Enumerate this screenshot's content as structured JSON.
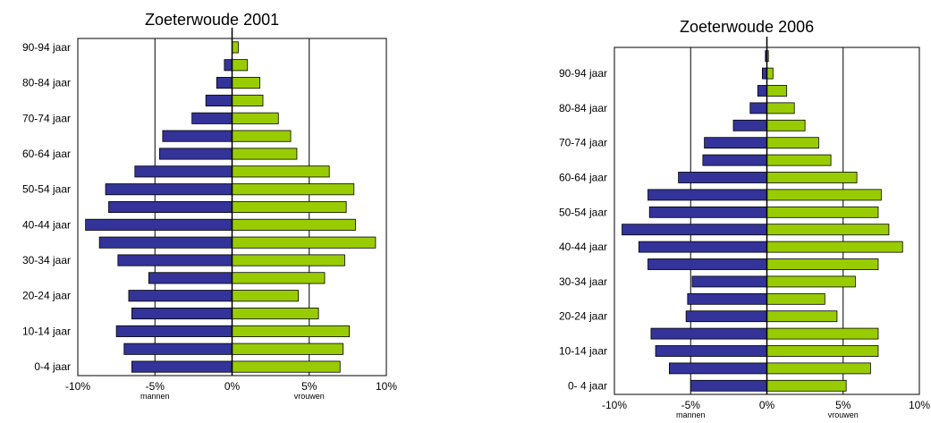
{
  "chart_data": [
    {
      "type": "bar",
      "orientation": "horizontal",
      "title": "Zoeterwoude 2001",
      "xlim": [
        -10,
        10
      ],
      "x_ticks": [
        "-10%",
        "-5%",
        "0%",
        "5%",
        "10%"
      ],
      "y_tick_labels": [
        "0-4 jaar",
        "10-14 jaar",
        "20-24 jaar",
        "30-34 jaar",
        "40-44 jaar",
        "50-54 jaar",
        "60-64 jaar",
        "70-74 jaar",
        "80-84 jaar",
        "90-94 jaar"
      ],
      "legend_left": "mannen",
      "legend_right": "vrouwen",
      "grid": "vertical at -5%, 5%",
      "series": [
        {
          "values": [
            -6.5,
            -7.0,
            -7.5,
            -6.5,
            -6.7,
            -5.4,
            -7.4,
            -8.6,
            -9.5,
            -8.0,
            -8.2,
            -6.3,
            -4.7,
            -4.5,
            -2.6,
            -1.7,
            -1.0,
            -0.5,
            0.0
          ],
          "color": "#333399"
        },
        {
          "values": [
            7.0,
            7.2,
            7.6,
            5.6,
            4.3,
            6.0,
            7.3,
            9.3,
            8.0,
            7.4,
            7.9,
            6.3,
            4.2,
            3.8,
            3.0,
            2.0,
            1.8,
            1.0,
            0.4
          ],
          "color": "#99CC00"
        }
      ]
    },
    {
      "type": "bar",
      "orientation": "horizontal",
      "title": "Zoeterwoude 2006",
      "xlim": [
        -10,
        10
      ],
      "x_ticks": [
        "-10%",
        "-5%",
        "0%",
        "5%",
        "10%"
      ],
      "y_tick_labels": [
        "0- 4 jaar",
        "10-14 jaar",
        "20-24 jaar",
        "30-34 jaar",
        "40-44 jaar",
        "50-54 jaar",
        "60-64 jaar",
        "70-74 jaar",
        "80-84 jaar",
        "90-94 jaar"
      ],
      "legend_left": "mannen",
      "legend_right": "vrouwen",
      "grid": "vertical at -5%, 5%",
      "series": [
        {
          "values": [
            -5.0,
            -6.4,
            -7.3,
            -7.6,
            -5.3,
            -5.2,
            -4.9,
            -7.8,
            -8.4,
            -9.5,
            -7.7,
            -7.8,
            -5.8,
            -4.2,
            -4.1,
            -2.2,
            -1.1,
            -0.6,
            -0.3,
            -0.1
          ],
          "color": "#333399"
        },
        {
          "values": [
            5.2,
            6.8,
            7.3,
            7.3,
            4.6,
            3.8,
            5.8,
            7.3,
            8.9,
            8.0,
            7.3,
            7.5,
            5.9,
            4.2,
            3.4,
            2.5,
            1.8,
            1.3,
            0.4,
            0.1
          ],
          "color": "#99CC00"
        }
      ]
    }
  ]
}
